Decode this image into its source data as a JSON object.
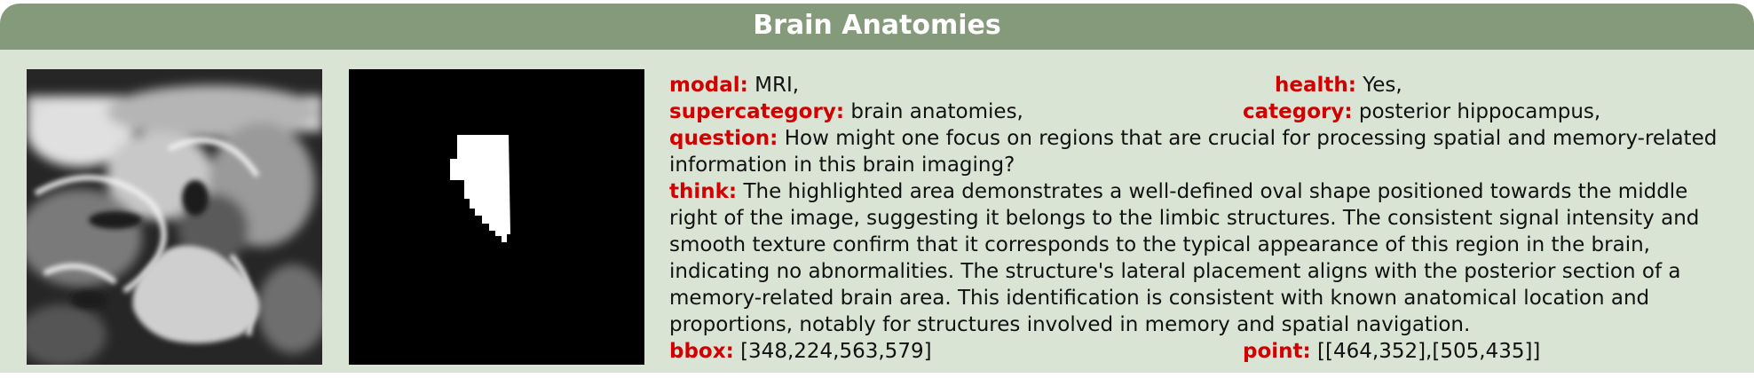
{
  "header": {
    "title": "Brain Anatomies"
  },
  "images": {
    "mri": {
      "icon": "mri-scan-image"
    },
    "mask": {
      "icon": "segmentation-mask-image"
    }
  },
  "fields": {
    "modal": {
      "key": "modal:",
      "value": "MRI,"
    },
    "health": {
      "key": "health:",
      "value": "Yes,"
    },
    "supercategory": {
      "key": "supercategory:",
      "value": "brain anatomies,"
    },
    "category": {
      "key": "category:",
      "value": "posterior hippocampus,"
    },
    "question": {
      "key": "question:",
      "value": "How might one focus on regions that are crucial for processing spatial and memory-related information in this brain imaging?"
    },
    "think": {
      "key": "think:",
      "value": "The highlighted area demonstrates a well-defined oval shape positioned towards the middle right of the image, suggesting it belongs to the limbic structures. The consistent signal intensity and smooth texture confirm that it corresponds to the typical appearance of this region in the brain, indicating no abnormalities. The structure's lateral placement aligns with the posterior section of a memory-related brain area. This identification is consistent with known anatomical location and proportions, notably for structures involved in memory and spatial navigation."
    },
    "bbox": {
      "key": "bbox:",
      "value": "[348,224,563,579]"
    },
    "point": {
      "key": "point:",
      "value": "[[464,352],[505,435]]"
    }
  },
  "colors": {
    "header": "#859a7a",
    "background": "#d9e4d4",
    "key": "#d20000"
  }
}
